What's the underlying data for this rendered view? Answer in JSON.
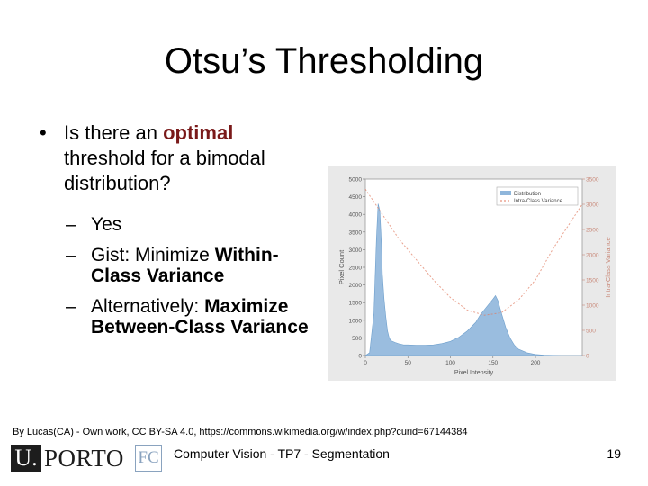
{
  "slide": {
    "title": "Otsu’s Thresholding",
    "bullet": {
      "marker": "•",
      "prefix": "Is there an ",
      "emphasis": "optimal",
      "suffix": " threshold for a bimodal distribution?"
    },
    "sub_bullets": [
      {
        "dash": "–",
        "parts": [
          {
            "text": "Yes",
            "bold": false
          }
        ]
      },
      {
        "dash": "–",
        "parts": [
          {
            "text": "Gist: Minimize ",
            "bold": false
          },
          {
            "text": "Within-Class Variance",
            "bold": true
          }
        ]
      },
      {
        "dash": "–",
        "parts": [
          {
            "text": "Alternatively: ",
            "bold": false
          },
          {
            "text": "Maximize Between-Class Variance",
            "bold": true
          }
        ]
      }
    ],
    "credit": "By Lucas(CA) - Own work, CC BY-SA 4.0, https://commons.wikimedia.org/w/index.php?curid=67144384"
  },
  "footer": {
    "logo_initial": "U.",
    "logo_text": "PORTO",
    "logo_faculty": "FC",
    "course": "Computer Vision - TP7 - Segmentation",
    "page": "19"
  },
  "chart_data": {
    "type": "area",
    "xlabel": "Pixel Intensity",
    "ylabel": "Pixel Count",
    "y2label": "Intra-Class Variance",
    "xlim": [
      0,
      255
    ],
    "ylim": [
      0,
      5000
    ],
    "y2lim": [
      0,
      3500
    ],
    "xticks": [
      0,
      50,
      100,
      150,
      200
    ],
    "yticks": [
      0,
      500,
      1000,
      1500,
      2000,
      2500,
      3000,
      3500,
      4000,
      4500,
      5000
    ],
    "y2ticks": [
      0,
      500,
      1000,
      1500,
      2000,
      2500,
      3000,
      3500
    ],
    "legend_position": "top-right",
    "series": [
      {
        "name": "Distribution",
        "color": "#8fb6db",
        "x": [
          0,
          5,
          10,
          13,
          15,
          17,
          19,
          20,
          22,
          24,
          26,
          28,
          30,
          35,
          40,
          45,
          50,
          60,
          70,
          80,
          90,
          100,
          110,
          120,
          130,
          135,
          140,
          145,
          150,
          153,
          156,
          160,
          165,
          170,
          175,
          180,
          190,
          200,
          210,
          220,
          230,
          240,
          255
        ],
        "values": [
          0,
          80,
          1200,
          3300,
          4300,
          4100,
          3100,
          2300,
          1600,
          1100,
          700,
          500,
          420,
          370,
          330,
          300,
          300,
          290,
          290,
          300,
          340,
          400,
          520,
          700,
          950,
          1150,
          1300,
          1450,
          1600,
          1700,
          1550,
          1200,
          800,
          500,
          300,
          180,
          80,
          30,
          10,
          5,
          0,
          0,
          0
        ]
      },
      {
        "name": "Intra-Class Variance",
        "color": "#e07a5f",
        "x": [
          0,
          40,
          80,
          100,
          120,
          140,
          160,
          180,
          200,
          220,
          255
        ],
        "values": [
          3300,
          2300,
          1500,
          1150,
          900,
          800,
          850,
          1100,
          1500,
          2100,
          3000
        ]
      }
    ]
  }
}
